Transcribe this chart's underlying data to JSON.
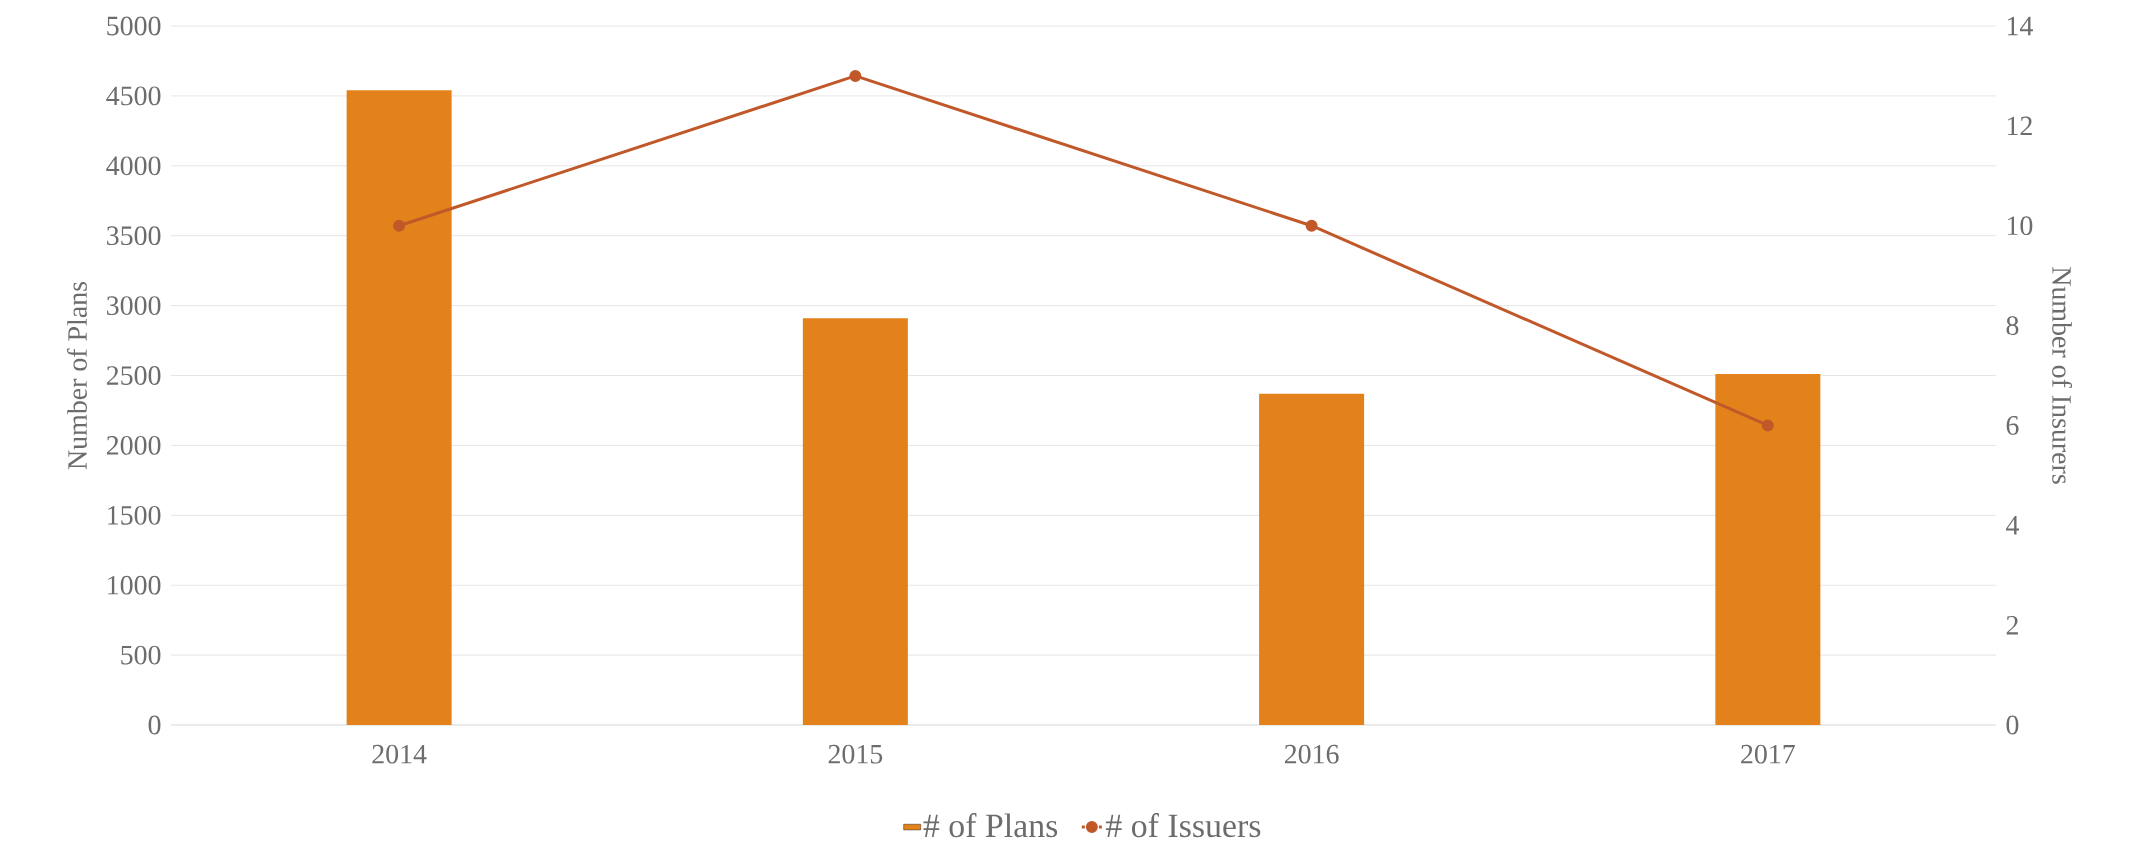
{
  "chart_data": {
    "type": "bar",
    "categories": [
      "2014",
      "2015",
      "2016",
      "2017"
    ],
    "series": [
      {
        "name": "# of Plans",
        "color": "#e3821a",
        "values": [
          4540,
          2910,
          2370,
          2510
        ]
      },
      {
        "name": "# of Issuers",
        "type": "line",
        "axis": "y2",
        "color": "#c0582a",
        "values": [
          10,
          13,
          10,
          6
        ]
      }
    ],
    "ylabel": "Number of Plans",
    "y2label": "Number of Insurers",
    "ylim": [
      0,
      5000
    ],
    "yticks": [
      0,
      500,
      1000,
      1500,
      2000,
      2500,
      3000,
      3500,
      4000,
      4500,
      5000
    ],
    "y2lim": [
      0,
      14
    ],
    "y2ticks": [
      0,
      2,
      4,
      6,
      8,
      10,
      12,
      14
    ],
    "grid": "y",
    "legend": "bottom",
    "marker": "circle"
  }
}
